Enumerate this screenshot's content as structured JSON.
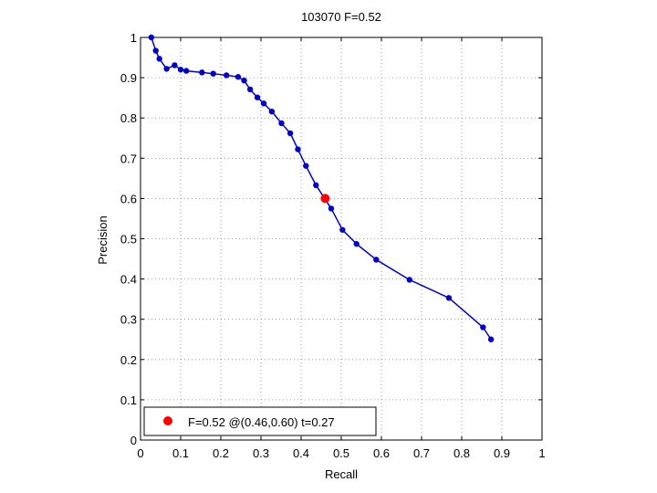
{
  "chart_data": {
    "type": "line",
    "title": "103070 F=0.52",
    "xlabel": "Recall",
    "ylabel": "Precision",
    "xlim": [
      0,
      1
    ],
    "ylim": [
      0,
      1
    ],
    "grid": true,
    "x_ticks": [
      "0",
      "0.1",
      "0.2",
      "0.3",
      "0.4",
      "0.5",
      "0.6",
      "0.7",
      "0.8",
      "0.9",
      "1"
    ],
    "y_ticks": [
      "0",
      "0.1",
      "0.2",
      "0.3",
      "0.4",
      "0.5",
      "0.6",
      "0.7",
      "0.8",
      "0.9",
      "1"
    ],
    "series": [
      {
        "color": "#0000cc",
        "marker": "dot",
        "points": [
          [
            0.027,
            1.0
          ],
          [
            0.038,
            0.967
          ],
          [
            0.047,
            0.947
          ],
          [
            0.065,
            0.922
          ],
          [
            0.085,
            0.931
          ],
          [
            0.1,
            0.92
          ],
          [
            0.114,
            0.917
          ],
          [
            0.153,
            0.913
          ],
          [
            0.181,
            0.91
          ],
          [
            0.214,
            0.906
          ],
          [
            0.243,
            0.902
          ],
          [
            0.258,
            0.893
          ],
          [
            0.273,
            0.871
          ],
          [
            0.291,
            0.851
          ],
          [
            0.307,
            0.836
          ],
          [
            0.327,
            0.816
          ],
          [
            0.351,
            0.787
          ],
          [
            0.373,
            0.762
          ],
          [
            0.392,
            0.722
          ],
          [
            0.412,
            0.681
          ],
          [
            0.437,
            0.633
          ],
          [
            0.475,
            0.575
          ],
          [
            0.503,
            0.522
          ],
          [
            0.538,
            0.487
          ],
          [
            0.587,
            0.448
          ],
          [
            0.67,
            0.398
          ],
          [
            0.768,
            0.353
          ],
          [
            0.853,
            0.28
          ],
          [
            0.873,
            0.25
          ]
        ]
      }
    ],
    "highlight": {
      "color": "#ff0000",
      "point": [
        0.46,
        0.6
      ],
      "label": "F=0.52 @(0.46,0.60) t=0.27"
    },
    "legend_placement": "bottom-left"
  }
}
